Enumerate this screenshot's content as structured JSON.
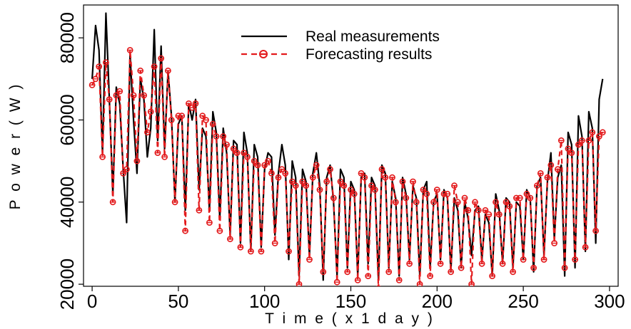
{
  "chart_data": {
    "type": "line",
    "title": "",
    "xlabel": "T i m e ( x 1 d a y )",
    "ylabel": "P o w e r ( W )",
    "xlim": [
      -5,
      305
    ],
    "ylim": [
      19500,
      88000
    ],
    "xticks": [
      0,
      50,
      100,
      150,
      200,
      250,
      300
    ],
    "yticks": [
      20000,
      40000,
      60000,
      80000
    ],
    "grid": false,
    "legend_position": "top-right",
    "series": [
      {
        "name": "Real measurements",
        "color": "#000000",
        "style": "solid",
        "x": [
          0,
          2,
          4,
          6,
          8,
          10,
          12,
          14,
          16,
          18,
          20,
          22,
          24,
          26,
          28,
          30,
          32,
          34,
          36,
          38,
          40,
          42,
          44,
          46,
          48,
          50,
          52,
          54,
          56,
          58,
          60,
          62,
          64,
          66,
          68,
          70,
          72,
          74,
          76,
          78,
          80,
          82,
          84,
          86,
          88,
          90,
          92,
          94,
          96,
          98,
          100,
          102,
          104,
          106,
          108,
          110,
          112,
          114,
          116,
          118,
          120,
          122,
          124,
          126,
          128,
          130,
          132,
          134,
          136,
          138,
          140,
          142,
          144,
          146,
          148,
          150,
          152,
          154,
          156,
          158,
          160,
          162,
          164,
          166,
          168,
          170,
          172,
          174,
          176,
          178,
          180,
          182,
          184,
          186,
          188,
          190,
          192,
          194,
          196,
          198,
          200,
          202,
          204,
          206,
          208,
          210,
          212,
          214,
          216,
          218,
          220,
          222,
          224,
          226,
          228,
          230,
          232,
          234,
          236,
          238,
          240,
          242,
          244,
          246,
          248,
          250,
          252,
          254,
          256,
          258,
          260,
          262,
          264,
          266,
          268,
          270,
          272,
          274,
          276,
          278,
          280,
          282,
          284,
          286,
          288,
          290,
          292,
          294,
          296
        ],
        "values": [
          70000,
          83000,
          77000,
          52000,
          86000,
          65000,
          42000,
          68000,
          64000,
          48000,
          35000,
          76000,
          60000,
          47000,
          70000,
          65000,
          51000,
          58000,
          82000,
          55000,
          78000,
          53000,
          72000,
          61000,
          40000,
          59000,
          61000,
          38000,
          64000,
          60000,
          65000,
          43000,
          58000,
          56000,
          38000,
          62000,
          57000,
          36000,
          58000,
          52000,
          32000,
          55000,
          54000,
          30000,
          57000,
          52000,
          28000,
          54000,
          51000,
          29000,
          48000,
          52000,
          51000,
          32000,
          47000,
          54000,
          49000,
          26000,
          50000,
          46000,
          22000,
          48000,
          45000,
          27000,
          47000,
          52000,
          44000,
          21000,
          46000,
          49000,
          40000,
          22000,
          48000,
          46000,
          24000,
          45000,
          43000,
          22000,
          46000,
          47000,
          25000,
          46000,
          44000,
          21000,
          49000,
          47000,
          24000,
          45000,
          41000,
          22000,
          46000,
          42000,
          26000,
          44000,
          41000,
          22000,
          43000,
          45000,
          24000,
          40000,
          42000,
          26000,
          43000,
          41000,
          23000,
          41000,
          38000,
          24000,
          40000,
          36000,
          27000,
          38000,
          39000,
          26000,
          37000,
          35000,
          22000,
          42000,
          38000,
          25000,
          41000,
          40000,
          24000,
          40000,
          39000,
          26000,
          43000,
          41000,
          23000,
          44000,
          46000,
          27000,
          45000,
          52000,
          31000,
          46000,
          49000,
          22000,
          57000,
          54000,
          24000,
          61000,
          56000,
          28000,
          62000,
          58000,
          30000,
          65000,
          70000
        ]
      },
      {
        "name": "Forecasting results",
        "color": "#e31a1c",
        "style": "dashed",
        "marker": "circle-bar",
        "x": [
          0,
          2,
          4,
          6,
          8,
          10,
          12,
          14,
          16,
          18,
          20,
          22,
          24,
          26,
          28,
          30,
          32,
          34,
          36,
          38,
          40,
          42,
          44,
          46,
          48,
          50,
          52,
          54,
          56,
          58,
          60,
          62,
          64,
          66,
          68,
          70,
          72,
          74,
          76,
          78,
          80,
          82,
          84,
          86,
          88,
          90,
          92,
          94,
          96,
          98,
          100,
          102,
          104,
          106,
          108,
          110,
          112,
          114,
          116,
          118,
          120,
          122,
          124,
          126,
          128,
          130,
          132,
          134,
          136,
          138,
          140,
          142,
          144,
          146,
          148,
          150,
          152,
          154,
          156,
          158,
          160,
          162,
          164,
          166,
          168,
          170,
          172,
          174,
          176,
          178,
          180,
          182,
          184,
          186,
          188,
          190,
          192,
          194,
          196,
          198,
          200,
          202,
          204,
          206,
          208,
          210,
          212,
          214,
          216,
          218,
          220,
          222,
          224,
          226,
          228,
          230,
          232,
          234,
          236,
          238,
          240,
          242,
          244,
          246,
          248,
          250,
          252,
          254,
          256,
          258,
          260,
          262,
          264,
          266,
          268,
          270,
          272,
          274,
          276,
          278,
          280,
          282,
          284,
          286,
          288,
          290,
          292,
          294,
          296
        ],
        "values": [
          68500,
          70000,
          73000,
          51000,
          74000,
          65000,
          40000,
          66000,
          67000,
          47000,
          48000,
          77000,
          66000,
          50000,
          72000,
          66000,
          57000,
          62000,
          73000,
          52000,
          75000,
          51000,
          72000,
          60000,
          40000,
          61000,
          61000,
          33000,
          64000,
          63000,
          64000,
          38000,
          61000,
          60000,
          35000,
          59000,
          56000,
          33000,
          56000,
          54000,
          31000,
          53000,
          52000,
          29000,
          52000,
          51000,
          28000,
          50000,
          49000,
          28000,
          49000,
          50000,
          47000,
          30000,
          46000,
          48000,
          47000,
          28000,
          45000,
          44000,
          20000,
          45000,
          44000,
          26000,
          46000,
          49000,
          43000,
          23000,
          45000,
          48000,
          41000,
          20500,
          45000,
          44000,
          23000,
          43000,
          42000,
          21000,
          47000,
          46000,
          22000,
          44000,
          43000,
          19000,
          48000,
          46000,
          23000,
          46000,
          40000,
          21000,
          45000,
          41000,
          25000,
          45000,
          40000,
          20000,
          43000,
          42000,
          22000,
          40000,
          43000,
          25000,
          42000,
          42000,
          23000,
          44000,
          40000,
          24000,
          41000,
          38000,
          20000,
          40000,
          38000,
          25000,
          38000,
          37000,
          22000,
          40000,
          37000,
          25000,
          40000,
          39000,
          23000,
          41000,
          41000,
          26000,
          42000,
          41000,
          24000,
          44000,
          47000,
          26000,
          46000,
          49000,
          30000,
          48000,
          55000,
          24000,
          53000,
          52000,
          26000,
          54000,
          55000,
          29000,
          55000,
          57000,
          33000,
          56000,
          57000
        ]
      }
    ]
  }
}
